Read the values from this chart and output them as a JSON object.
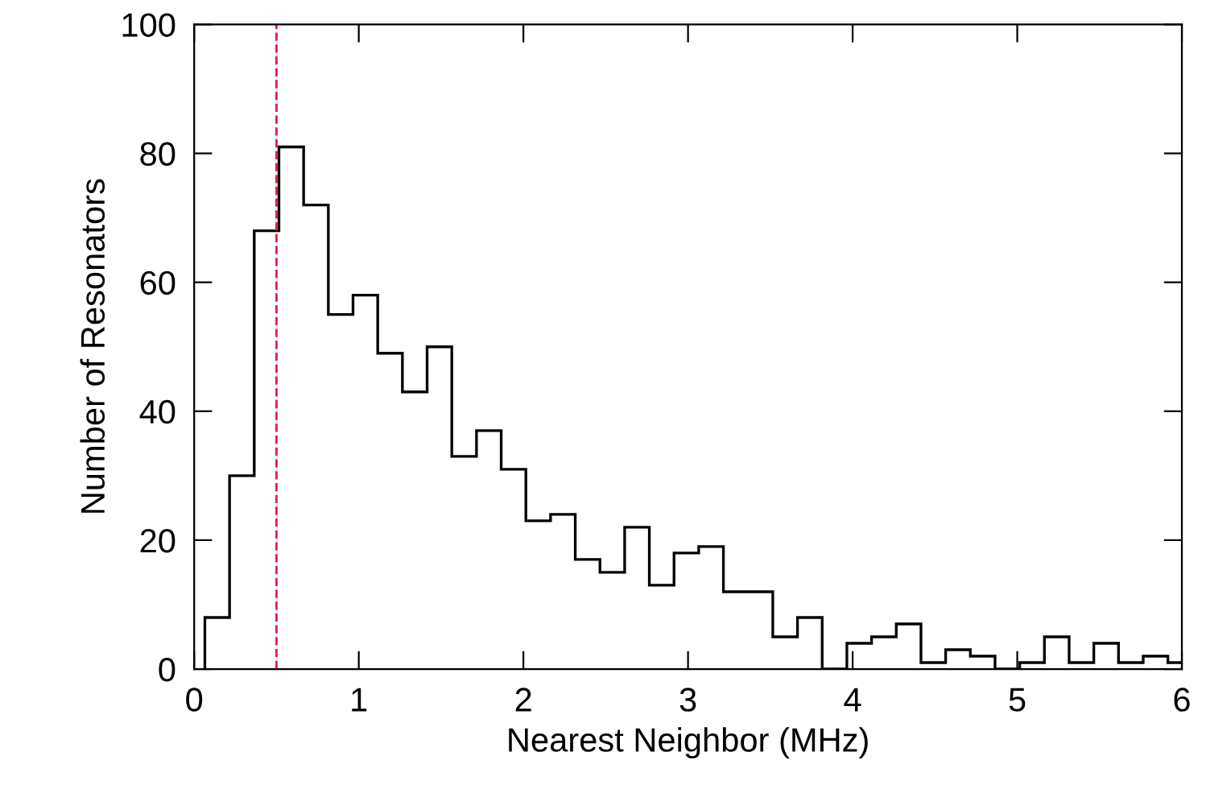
{
  "chart_data": {
    "type": "histogram",
    "xlabel": "Nearest Neighbor (MHz)",
    "ylabel": "Number of Resonators",
    "bins": [
      0.065,
      0.215,
      0.365,
      0.515,
      0.665,
      0.815,
      0.965,
      1.115,
      1.265,
      1.415,
      1.565,
      1.715,
      1.865,
      2.015,
      2.165,
      2.315,
      2.465,
      2.615,
      2.765,
      2.915,
      3.065,
      3.215,
      3.365,
      3.515,
      3.665,
      3.815,
      3.965,
      4.115,
      4.265,
      4.415,
      4.565,
      4.715,
      4.865,
      5.015,
      5.165,
      5.315,
      5.465,
      5.615,
      5.765,
      5.915,
      6.065
    ],
    "values": [
      8,
      30,
      68,
      81,
      72,
      55,
      58,
      49,
      43,
      50,
      33,
      37,
      31,
      23,
      24,
      17,
      15,
      22,
      13,
      18,
      19,
      12,
      12,
      5,
      8,
      0,
      4,
      5,
      7,
      1,
      3,
      2,
      0,
      1,
      5,
      1,
      4,
      1,
      2,
      1
    ],
    "color": "#000000",
    "xlim": [
      0,
      6
    ],
    "xticks": [
      0,
      1,
      2,
      3,
      4,
      5,
      6
    ],
    "ylim": [
      0,
      100
    ],
    "yticks": [
      0,
      20,
      40,
      60,
      80,
      100
    ],
    "ref_lines": [
      {
        "axis": "x",
        "value": 0.5,
        "label": null,
        "color": "#e8174a",
        "line_style": "dashed"
      }
    ],
    "grid": false,
    "legend": false
  }
}
